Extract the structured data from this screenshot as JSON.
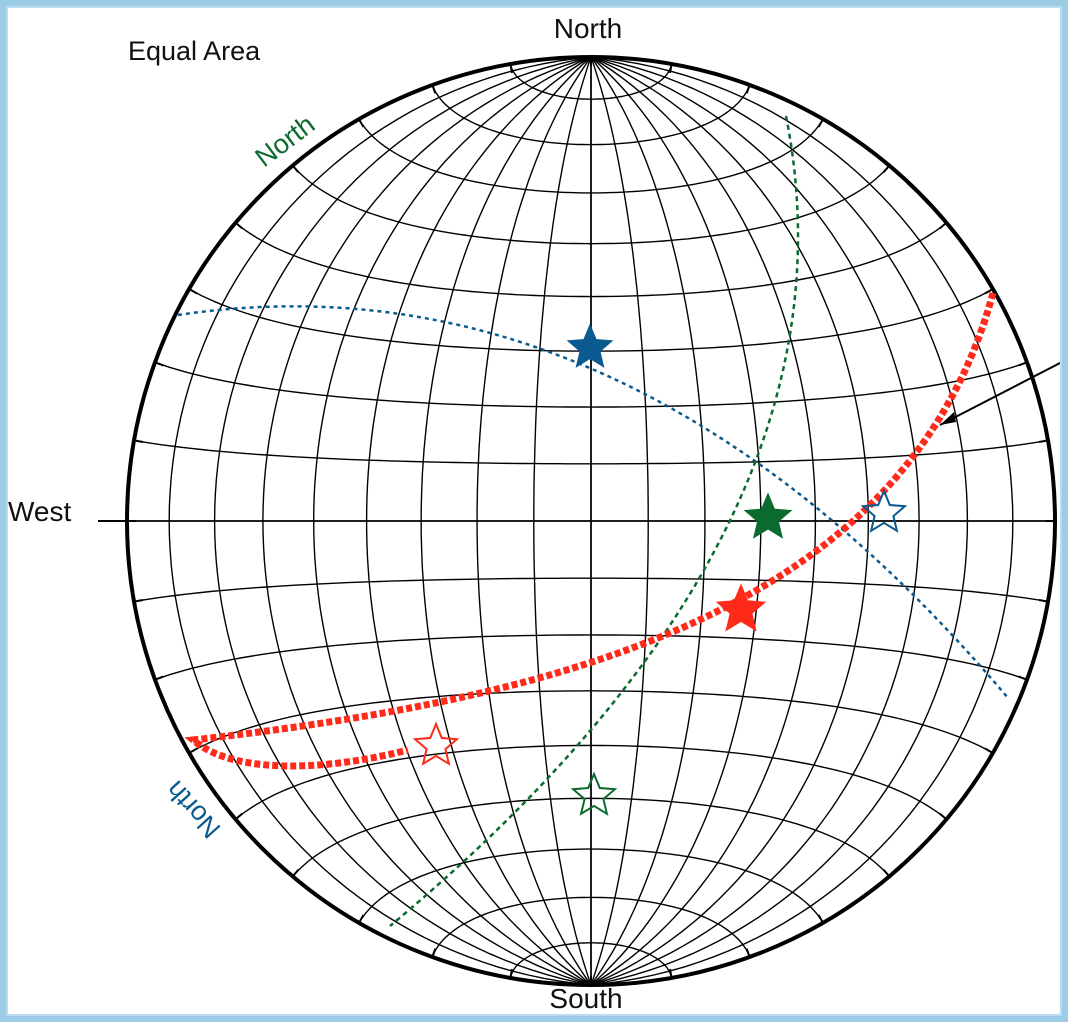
{
  "diagram": {
    "projection_label": "Equal Area",
    "directions": {
      "north": "North",
      "south": "South",
      "west": "West"
    },
    "green_plane_label": "North",
    "blue_plane_label": "North",
    "colors": {
      "net": "#000000",
      "red": "#ff2a1a",
      "green": "#0b6b2f",
      "blue": "#0a5a8f",
      "background": "#9ccbe6"
    }
  }
}
